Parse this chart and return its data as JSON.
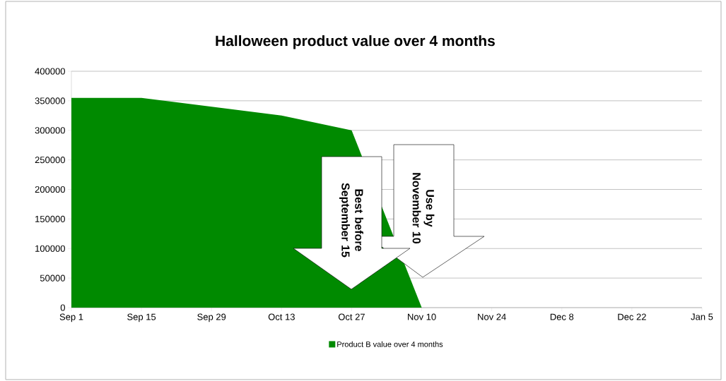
{
  "chart_data": {
    "type": "area",
    "title": "Halloween product value over 4 months",
    "categories": [
      "Sep 1",
      "Sep 15",
      "Sep 29",
      "Oct 13",
      "Oct 27",
      "Nov 10",
      "Nov 24",
      "Dec 8",
      "Dec 22",
      "Jan 5"
    ],
    "series": [
      {
        "name": "Product B value over 4 months",
        "color": "#008a00",
        "values": [
          355000,
          355000,
          340000,
          325000,
          300000,
          0,
          null,
          null,
          null,
          null
        ]
      }
    ],
    "ylim": [
      0,
      400000
    ],
    "yticks": [
      0,
      50000,
      100000,
      150000,
      200000,
      250000,
      300000,
      350000,
      400000
    ],
    "grid": "y",
    "legend": "bottom",
    "annotations": [
      "Best before September 15",
      "Use by November 10"
    ]
  }
}
